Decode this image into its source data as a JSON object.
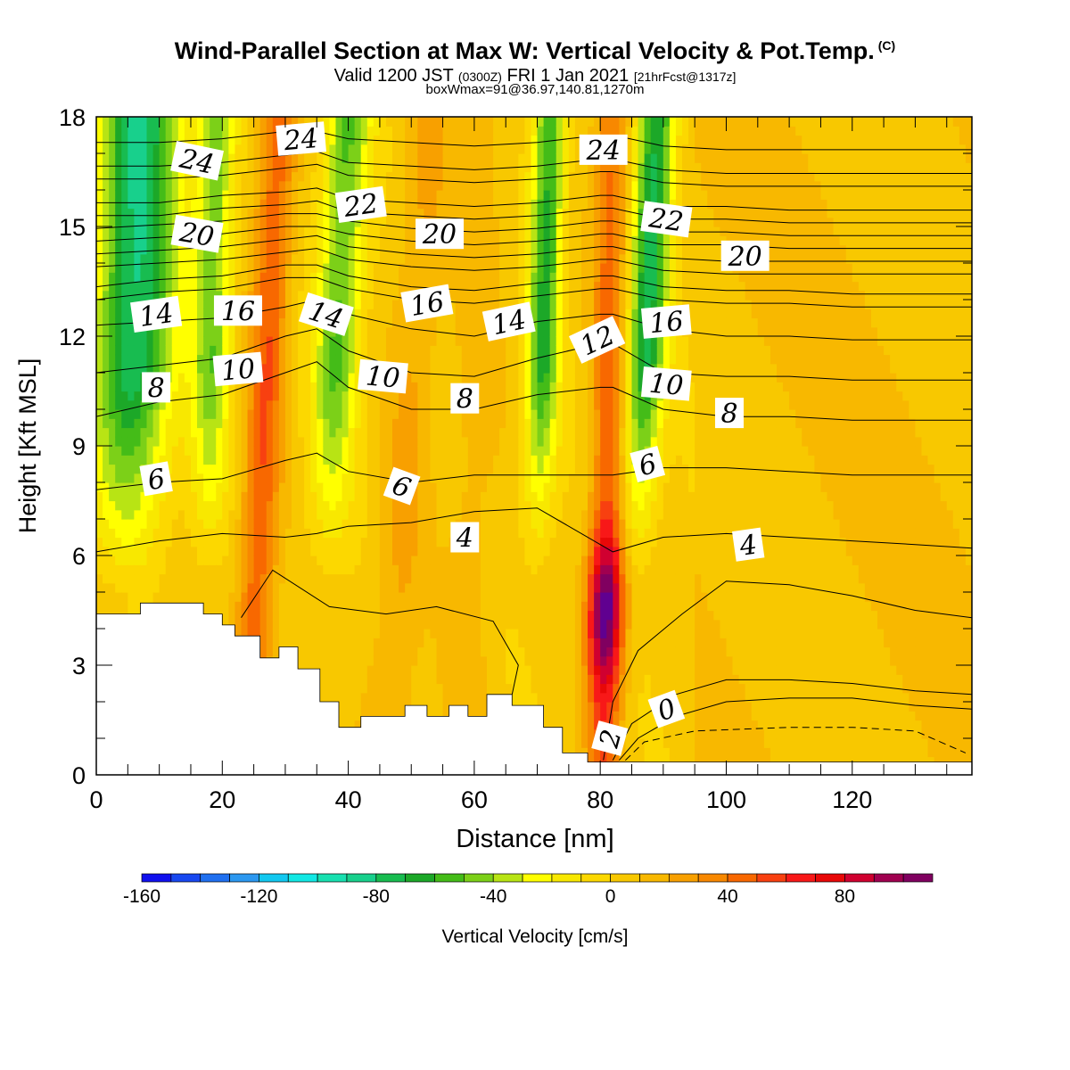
{
  "header": {
    "title": "Wind-Parallel Section at Max W: Vertical Velocity & Pot.Temp.",
    "copyright": "(C)",
    "valid_prefix": "Valid 1200 JST",
    "valid_utc": "(0300Z)",
    "valid_date": "FRI 1 Jan 2021",
    "forecast_tag": "[21hrFcst@1317z]",
    "box_info": "boxWmax=91@36.97,140.81,1270m"
  },
  "chart_data": {
    "type": "heatmap",
    "xlabel": "Distance [nm]",
    "ylabel": "Height [Kft MSL]",
    "xlim": [
      0,
      139
    ],
    "ylim": [
      0,
      18
    ],
    "x_ticks": [
      0,
      20,
      40,
      60,
      80,
      100,
      120
    ],
    "y_ticks": [
      0,
      3,
      6,
      9,
      12,
      15,
      18
    ],
    "colorbar": {
      "label": "Vertical Velocity [cm/s]",
      "range": [
        -160,
        110
      ],
      "step": 10,
      "tick_values": [
        -160,
        -120,
        -80,
        -40,
        0,
        40,
        80
      ],
      "colors": [
        "#1010ee",
        "#1848f0",
        "#2070f0",
        "#2c98f0",
        "#12c8f0",
        "#12e8e4",
        "#18e0b0",
        "#18d08c",
        "#18bc50",
        "#1ca828",
        "#44bc18",
        "#7cd018",
        "#b8e414",
        "#ffff00",
        "#f8e800",
        "#fcd800",
        "#f8c800",
        "#f8b800",
        "#f8a000",
        "#f88800",
        "#f86800",
        "#f84010",
        "#f81818",
        "#e80808",
        "#d00030",
        "#a00050",
        "#800060",
        "#600090"
      ]
    },
    "terrain_profile": {
      "x": [
        0,
        7,
        7,
        17,
        17,
        20,
        20,
        22,
        22,
        26,
        26,
        29,
        29,
        32,
        32,
        35.5,
        35.5,
        38.5,
        38.5,
        42,
        42,
        49,
        49,
        52.5,
        52.5,
        56,
        56,
        59,
        59,
        62,
        62,
        66,
        66,
        71,
        71,
        74,
        74,
        78,
        78,
        80.5,
        80.5,
        139
      ],
      "y": [
        4.4,
        4.4,
        4.7,
        4.7,
        4.4,
        4.4,
        4.1,
        4.1,
        3.8,
        3.8,
        3.2,
        3.2,
        3.5,
        3.5,
        2.9,
        2.9,
        2.0,
        2.0,
        1.3,
        1.3,
        1.6,
        1.6,
        1.9,
        1.9,
        1.6,
        1.6,
        1.9,
        1.9,
        1.6,
        1.6,
        2.2,
        2.2,
        1.9,
        1.9,
        1.3,
        1.3,
        0.6,
        0.6,
        0.35,
        0.35,
        0.35,
        0.35
      ]
    },
    "updraft_axes": [
      {
        "name": "updraft-1",
        "x_bottom": 24,
        "x_top": 29,
        "peak": 45,
        "width": 3
      },
      {
        "name": "updraft-2",
        "x_bottom": 46,
        "x_top": 53,
        "peak": 18,
        "width": 4
      },
      {
        "name": "updraft-3",
        "x_bottom": 80.5,
        "x_top": 82,
        "peak": 91,
        "width": 2.8
      },
      {
        "name": "updraft-4",
        "x_bottom": 58,
        "x_top": 62,
        "peak": 12,
        "width": 4
      }
    ],
    "downdraft_axes": [
      {
        "name": "downdraft-1",
        "x_bottom": 4,
        "x_top": 7,
        "peak": -85,
        "width": 6
      },
      {
        "name": "downdraft-2",
        "x_bottom": 35,
        "x_top": 40,
        "peak": -55,
        "width": 3.5
      },
      {
        "name": "downdraft-3",
        "x_bottom": 69,
        "x_top": 72,
        "peak": -65,
        "width": 2.5
      },
      {
        "name": "downdraft-4",
        "x_bottom": 84,
        "x_top": 89,
        "peak": -75,
        "width": 3
      },
      {
        "name": "downdraft-5",
        "x_bottom": 17,
        "x_top": 19,
        "peak": -50,
        "width": 3
      }
    ],
    "potential_temperature_levels": [
      0,
      2,
      4,
      6,
      8,
      10,
      12,
      14,
      16,
      18,
      20,
      22,
      24
    ],
    "isentropes": {
      "x": [
        0,
        10,
        20,
        30,
        35,
        40,
        50,
        60,
        70,
        80,
        82,
        90,
        100,
        110,
        120,
        130,
        139
      ],
      "heights": [
        {
          "theta": 4,
          "y": [
            6.1,
            6.4,
            6.6,
            6.5,
            6.6,
            6.8,
            6.9,
            7.2,
            7.3,
            6.3,
            6.1,
            6.5,
            6.6,
            6.5,
            6.4,
            6.3,
            6.2
          ]
        },
        {
          "theta": 6,
          "y": [
            7.8,
            8.0,
            8.1,
            8.6,
            8.8,
            8.3,
            8.0,
            8.2,
            8.2,
            8.2,
            8.2,
            8.4,
            8.4,
            8.3,
            8.2,
            8.2,
            8.2
          ]
        },
        {
          "theta": 8,
          "y": [
            9.8,
            10.2,
            10.4,
            11.0,
            11.3,
            10.6,
            10.0,
            10.0,
            10.4,
            10.6,
            10.6,
            10.0,
            9.8,
            9.8,
            9.7,
            9.7,
            9.7
          ]
        },
        {
          "theta": 10,
          "y": [
            11.0,
            11.2,
            11.4,
            12.0,
            12.2,
            11.6,
            11.0,
            10.9,
            11.4,
            11.8,
            11.8,
            11.0,
            10.9,
            10.9,
            10.8,
            10.8,
            10.8
          ]
        },
        {
          "theta": 12,
          "y": [
            12.3,
            12.4,
            12.5,
            12.8,
            13.0,
            12.6,
            12.2,
            12.0,
            12.4,
            12.6,
            12.6,
            12.2,
            12.0,
            12.0,
            11.9,
            11.9,
            11.9
          ]
        },
        {
          "theta": 14,
          "y": [
            13.0,
            13.2,
            13.3,
            13.6,
            13.6,
            13.3,
            13.0,
            12.9,
            13.1,
            13.3,
            13.3,
            13.0,
            12.9,
            12.9,
            12.8,
            12.8,
            12.8
          ]
        },
        {
          "theta": 16,
          "y": [
            13.9,
            14.0,
            14.1,
            14.3,
            14.4,
            14.1,
            13.9,
            13.8,
            13.9,
            14.1,
            14.1,
            13.8,
            13.7,
            13.7,
            13.7,
            13.7,
            13.7
          ]
        },
        {
          "theta": 18,
          "y": [
            14.6,
            14.7,
            14.8,
            15.0,
            15.0,
            14.8,
            14.6,
            14.5,
            14.6,
            14.8,
            14.8,
            14.5,
            14.5,
            14.4,
            14.4,
            14.4,
            14.4
          ]
        },
        {
          "theta": 20,
          "y": [
            15.3,
            15.3,
            15.5,
            15.6,
            15.7,
            15.4,
            15.3,
            15.2,
            15.3,
            15.5,
            15.5,
            15.2,
            15.2,
            15.1,
            15.1,
            15.1,
            15.1
          ]
        },
        {
          "theta": 22,
          "y": [
            16.3,
            16.3,
            16.4,
            16.6,
            16.7,
            16.4,
            16.3,
            16.2,
            16.3,
            16.5,
            16.5,
            16.2,
            16.1,
            16.1,
            16.1,
            16.1,
            16.1
          ]
        },
        {
          "theta": 24,
          "y": [
            17.3,
            17.3,
            17.4,
            17.6,
            17.6,
            17.4,
            17.3,
            17.2,
            17.3,
            17.5,
            17.5,
            17.2,
            17.1,
            17.1,
            17.1,
            17.1,
            17.1
          ]
        }
      ]
    },
    "contour_labels": [
      {
        "text": "24",
        "x": 16,
        "y": 16.8,
        "angle": 12
      },
      {
        "text": "24",
        "x": 32.5,
        "y": 17.4,
        "angle": -5
      },
      {
        "text": "24",
        "x": 80.5,
        "y": 17.1,
        "angle": 0
      },
      {
        "text": "22",
        "x": 42,
        "y": 15.6,
        "angle": -8
      },
      {
        "text": "22",
        "x": 90.5,
        "y": 15.2,
        "angle": 8
      },
      {
        "text": "20",
        "x": 16,
        "y": 14.8,
        "angle": 10
      },
      {
        "text": "20",
        "x": 54.5,
        "y": 14.8,
        "angle": 0
      },
      {
        "text": "20",
        "x": 103,
        "y": 14.2,
        "angle": 0
      },
      {
        "text": "14",
        "x": 9.5,
        "y": 12.6,
        "angle": -8
      },
      {
        "text": "16",
        "x": 22.5,
        "y": 12.7,
        "angle": 0
      },
      {
        "text": "14",
        "x": 36.5,
        "y": 12.6,
        "angle": 18
      },
      {
        "text": "16",
        "x": 52.5,
        "y": 12.9,
        "angle": -10
      },
      {
        "text": "14",
        "x": 65.5,
        "y": 12.4,
        "angle": -12
      },
      {
        "text": "12",
        "x": 79.5,
        "y": 11.9,
        "angle": -25
      },
      {
        "text": "16",
        "x": 90.5,
        "y": 12.4,
        "angle": -5
      },
      {
        "text": "8",
        "x": 9.5,
        "y": 10.6,
        "angle": 0
      },
      {
        "text": "10",
        "x": 22.5,
        "y": 11.1,
        "angle": -5
      },
      {
        "text": "10",
        "x": 45.5,
        "y": 10.9,
        "angle": 5
      },
      {
        "text": "8",
        "x": 58.5,
        "y": 10.3,
        "angle": 0
      },
      {
        "text": "10",
        "x": 90.5,
        "y": 10.7,
        "angle": 5
      },
      {
        "text": "8",
        "x": 100.5,
        "y": 9.9,
        "angle": 0
      },
      {
        "text": "6",
        "x": 9.5,
        "y": 8.1,
        "angle": -10
      },
      {
        "text": "6",
        "x": 48.5,
        "y": 7.9,
        "angle": 20
      },
      {
        "text": "6",
        "x": 87.5,
        "y": 8.5,
        "angle": -15
      },
      {
        "text": "4",
        "x": 58.5,
        "y": 6.5,
        "angle": 0
      },
      {
        "text": "4",
        "x": 103.5,
        "y": 6.3,
        "angle": -8
      },
      {
        "text": "0",
        "x": 90.5,
        "y": 1.8,
        "angle": -20
      },
      {
        "text": "2",
        "x": 81.5,
        "y": 1.0,
        "angle": -75
      }
    ]
  }
}
